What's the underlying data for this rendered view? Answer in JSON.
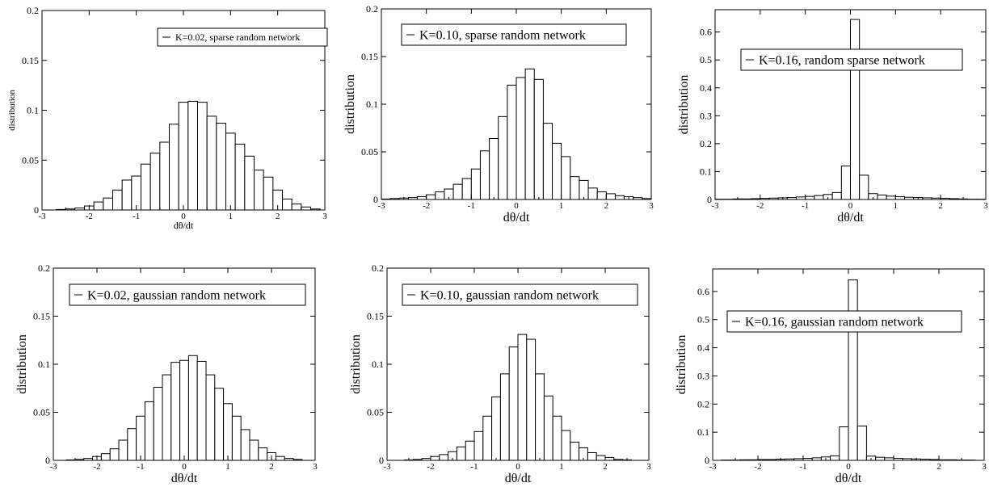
{
  "chart_data": [
    {
      "type": "bar",
      "xlabel": "dθ/dt",
      "ylabel": "distribution",
      "xlim": [
        -3,
        3
      ],
      "ylim": [
        0,
        0.2
      ],
      "xticks": [
        "-3",
        "-2",
        "-1",
        "0",
        "1",
        "2",
        "3"
      ],
      "yticks": [
        "0",
        "0.05",
        "0.1",
        "0.15",
        "0.2"
      ],
      "legend": {
        "label": "K=0.02, sparse random network",
        "position": "top-right"
      },
      "bins": [
        -2.8,
        -2.6,
        -2.4,
        -2.2,
        -2.0,
        -1.8,
        -1.6,
        -1.4,
        -1.2,
        -1.0,
        -0.8,
        -0.6,
        -0.4,
        -0.2,
        0.0,
        0.2,
        0.4,
        0.6,
        0.8,
        1.0,
        1.2,
        1.4,
        1.6,
        1.8,
        2.0,
        2.2,
        2.4,
        2.6,
        2.8
      ],
      "values": [
        0,
        0.0005,
        0.001,
        0.002,
        0.004,
        0.008,
        0.012,
        0.02,
        0.03,
        0.034,
        0.046,
        0.057,
        0.068,
        0.086,
        0.108,
        0.109,
        0.108,
        0.094,
        0.087,
        0.077,
        0.066,
        0.054,
        0.04,
        0.033,
        0.02,
        0.011,
        0.006,
        0.003,
        0.001
      ]
    },
    {
      "type": "bar",
      "xlabel": "dθ/dt",
      "ylabel": "distribution",
      "xlim": [
        -3,
        3
      ],
      "ylim": [
        0,
        0.2
      ],
      "xticks": [
        "-3",
        "-2",
        "-1",
        "0",
        "1",
        "2",
        "3"
      ],
      "yticks": [
        "0",
        "0.05",
        "0.1",
        "0.15",
        "0.2"
      ],
      "legend": {
        "label": "K=0.10, sparse random network",
        "position": "top-center"
      },
      "bins": [
        -2.9,
        -2.7,
        -2.5,
        -2.3,
        -2.1,
        -1.9,
        -1.7,
        -1.5,
        -1.3,
        -1.1,
        -0.9,
        -0.7,
        -0.5,
        -0.3,
        -0.1,
        0.1,
        0.3,
        0.5,
        0.7,
        0.9,
        1.1,
        1.3,
        1.5,
        1.7,
        1.9,
        2.1,
        2.3,
        2.5,
        2.7,
        2.9
      ],
      "values": [
        0.0005,
        0.001,
        0.0015,
        0.002,
        0.003,
        0.005,
        0.008,
        0.011,
        0.016,
        0.022,
        0.032,
        0.051,
        0.064,
        0.087,
        0.12,
        0.128,
        0.137,
        0.126,
        0.08,
        0.059,
        0.045,
        0.024,
        0.02,
        0.012,
        0.008,
        0.006,
        0.004,
        0.003,
        0.002,
        0.001
      ]
    },
    {
      "type": "bar",
      "xlabel": "dθ/dt",
      "ylabel": "distribution",
      "xlim": [
        -3,
        3
      ],
      "ylim": [
        0,
        0.68
      ],
      "xticks": [
        "-3",
        "-2",
        "-1",
        "0",
        "1",
        "2",
        "3"
      ],
      "yticks": [
        "0",
        "0.1",
        "0.2",
        "0.3",
        "0.4",
        "0.5",
        "0.6"
      ],
      "legend": {
        "label": "K=0.16, random sparse network",
        "position": "top-right"
      },
      "bins": [
        -2.9,
        -2.7,
        -2.5,
        -2.3,
        -2.1,
        -1.9,
        -1.7,
        -1.5,
        -1.3,
        -1.1,
        -0.9,
        -0.7,
        -0.5,
        -0.3,
        -0.1,
        0.1,
        0.3,
        0.5,
        0.7,
        0.9,
        1.1,
        1.3,
        1.5,
        1.7,
        1.9,
        2.1,
        2.3,
        2.5,
        2.7,
        2.9
      ],
      "values": [
        0.001,
        0.001,
        0.002,
        0.002,
        0.003,
        0.004,
        0.005,
        0.006,
        0.007,
        0.009,
        0.011,
        0.014,
        0.018,
        0.025,
        0.12,
        0.645,
        0.087,
        0.021,
        0.016,
        0.012,
        0.01,
        0.008,
        0.007,
        0.006,
        0.005,
        0.004,
        0.003,
        0.002,
        0.001,
        0.001
      ]
    },
    {
      "type": "bar",
      "xlabel": "dθ/dt",
      "ylabel": "distribution",
      "xlim": [
        -3,
        3
      ],
      "ylim": [
        0,
        0.2
      ],
      "xticks": [
        "-3",
        "-2",
        "-1",
        "0",
        "1",
        "2",
        "3"
      ],
      "yticks": [
        "0",
        "0.05",
        "0.1",
        "0.15",
        "0.2"
      ],
      "legend": {
        "label": "K=0.02, gaussian random network",
        "position": "top-right"
      },
      "bins": [
        -2.6,
        -2.4,
        -2.2,
        -2.0,
        -1.8,
        -1.6,
        -1.4,
        -1.2,
        -1.0,
        -0.8,
        -0.6,
        -0.4,
        -0.2,
        0.0,
        0.2,
        0.4,
        0.6,
        0.8,
        1.0,
        1.2,
        1.4,
        1.6,
        1.8,
        2.0,
        2.2,
        2.4,
        2.6
      ],
      "values": [
        0.0005,
        0.001,
        0.002,
        0.004,
        0.007,
        0.012,
        0.021,
        0.033,
        0.046,
        0.061,
        0.076,
        0.089,
        0.102,
        0.104,
        0.109,
        0.103,
        0.089,
        0.075,
        0.059,
        0.046,
        0.032,
        0.021,
        0.013,
        0.008,
        0.004,
        0.002,
        0.001
      ]
    },
    {
      "type": "bar",
      "xlabel": "dθ/dt",
      "ylabel": "distribution",
      "xlim": [
        -3,
        3
      ],
      "ylim": [
        0,
        0.2
      ],
      "xticks": [
        "-3",
        "-2",
        "-1",
        "0",
        "1",
        "2",
        "3"
      ],
      "yticks": [
        "0",
        "0.05",
        "0.1",
        "0.15",
        "0.2"
      ],
      "legend": {
        "label": "K=0.10, gaussian random network",
        "position": "top-right"
      },
      "bins": [
        -2.9,
        -2.7,
        -2.5,
        -2.3,
        -2.1,
        -1.9,
        -1.7,
        -1.5,
        -1.3,
        -1.1,
        -0.9,
        -0.7,
        -0.5,
        -0.3,
        -0.1,
        0.1,
        0.3,
        0.5,
        0.7,
        0.9,
        1.1,
        1.3,
        1.5,
        1.7,
        1.9,
        2.1,
        2.3,
        2.5,
        2.7,
        2.9
      ],
      "values": [
        0,
        0,
        0.0005,
        0.001,
        0.002,
        0.004,
        0.006,
        0.009,
        0.014,
        0.02,
        0.03,
        0.046,
        0.066,
        0.09,
        0.118,
        0.131,
        0.126,
        0.09,
        0.067,
        0.046,
        0.031,
        0.019,
        0.013,
        0.008,
        0.005,
        0.003,
        0.001,
        0.0005,
        0,
        0
      ]
    },
    {
      "type": "bar",
      "xlabel": "dθ/dt",
      "ylabel": "distribution",
      "xlim": [
        -3,
        3
      ],
      "ylim": [
        0,
        0.68
      ],
      "xticks": [
        "-3",
        "-2",
        "-1",
        "0",
        "1",
        "2",
        "3"
      ],
      "yticks": [
        "0",
        "0.1",
        "0.2",
        "0.3",
        "0.4",
        "0.5",
        "0.6"
      ],
      "legend": {
        "label": "K=0.16, gaussian random network",
        "position": "top-right"
      },
      "bins": [
        -2.9,
        -2.7,
        -2.5,
        -2.3,
        -2.1,
        -1.9,
        -1.7,
        -1.5,
        -1.3,
        -1.1,
        -0.9,
        -0.7,
        -0.5,
        -0.3,
        -0.1,
        0.1,
        0.3,
        0.5,
        0.7,
        0.9,
        1.1,
        1.3,
        1.5,
        1.7,
        1.9,
        2.1,
        2.3,
        2.5,
        2.7,
        2.9
      ],
      "values": [
        0,
        0.001,
        0.001,
        0.002,
        0.002,
        0.003,
        0.003,
        0.004,
        0.005,
        0.006,
        0.007,
        0.009,
        0.012,
        0.016,
        0.119,
        0.641,
        0.122,
        0.015,
        0.011,
        0.009,
        0.007,
        0.006,
        0.005,
        0.004,
        0.003,
        0.002,
        0.002,
        0.001,
        0.001,
        0
      ]
    }
  ]
}
